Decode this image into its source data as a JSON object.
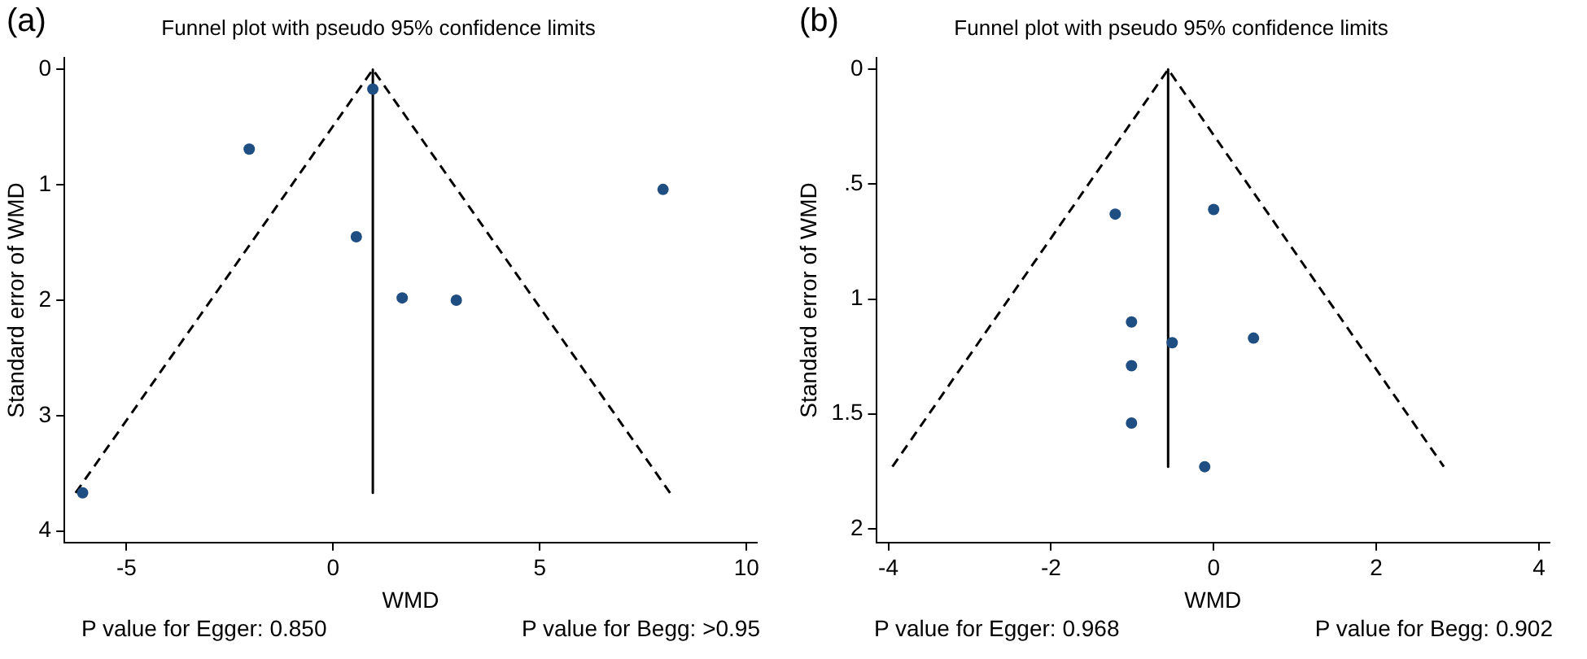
{
  "chart_data": [
    {
      "type": "scatter",
      "title": "Funnel plot with pseudo 95% confidence limits",
      "xlabel": "WMD",
      "ylabel": "Standard error of WMD",
      "annotations": [
        "(a)",
        "P value for Egger: 0.850",
        "P value for Begg: >0.95"
      ],
      "series": [
        {
          "color": "#1f4e82",
          "marker": "circle",
          "x": [
            0.96,
            -2.03,
            7.98,
            0.56,
            1.67,
            2.98,
            -6.06
          ],
          "values": [
            0.17,
            0.69,
            1.04,
            1.45,
            1.98,
            2.0,
            3.67
          ]
        },
        {
          "type": "line",
          "color": "#000000",
          "marker": "none",
          "line_style": "dashed",
          "x": [
            -6.23,
            0.96,
            8.15
          ],
          "values": [
            3.67,
            0,
            3.67
          ]
        },
        {
          "type": "line",
          "color": "#000000",
          "marker": "none",
          "line_style": "solid",
          "x": [
            0.96,
            0.96
          ],
          "values": [
            0,
            3.67
          ]
        }
      ],
      "xlim": [
        -6.5,
        10.25
      ],
      "xticks": [
        -5,
        0,
        5,
        10
      ],
      "ylim": [
        4.1,
        -0.1
      ],
      "yticks": [
        0,
        1,
        2,
        3,
        4
      ],
      "grid": false,
      "legend": false
    },
    {
      "type": "scatter",
      "title": "Funnel plot with pseudo 95% confidence limits",
      "xlabel": "WMD",
      "ylabel": "Standard error of WMD",
      "annotations": [
        "(b)",
        "P value for Egger: 0.968",
        "P value for Begg: 0.902"
      ],
      "series": [
        {
          "color": "#1f4e82",
          "marker": "circle",
          "x": [
            -1.21,
            0.0,
            -1.01,
            -0.51,
            0.49,
            -1.01,
            -1.01,
            -0.11
          ],
          "values": [
            0.63,
            0.61,
            1.1,
            1.19,
            1.17,
            1.29,
            1.54,
            1.73
          ]
        },
        {
          "type": "line",
          "color": "#000000",
          "marker": "none",
          "line_style": "dashed",
          "x": [
            -3.95,
            -0.56,
            2.83
          ],
          "values": [
            1.73,
            0,
            1.73
          ]
        },
        {
          "type": "line",
          "color": "#000000",
          "marker": "none",
          "line_style": "solid",
          "x": [
            -0.56,
            -0.56
          ],
          "values": [
            0,
            1.73
          ]
        }
      ],
      "xlim": [
        -4.15,
        4.13
      ],
      "xticks": [
        -4,
        -2,
        0,
        2,
        4
      ],
      "ylim": [
        2.06,
        -0.05
      ],
      "yticks": [
        0,
        {
          "value": 0.5,
          "label": ".5"
        },
        1,
        {
          "value": 1.5,
          "label": "1.5"
        },
        2
      ],
      "grid": false,
      "legend": false
    }
  ]
}
